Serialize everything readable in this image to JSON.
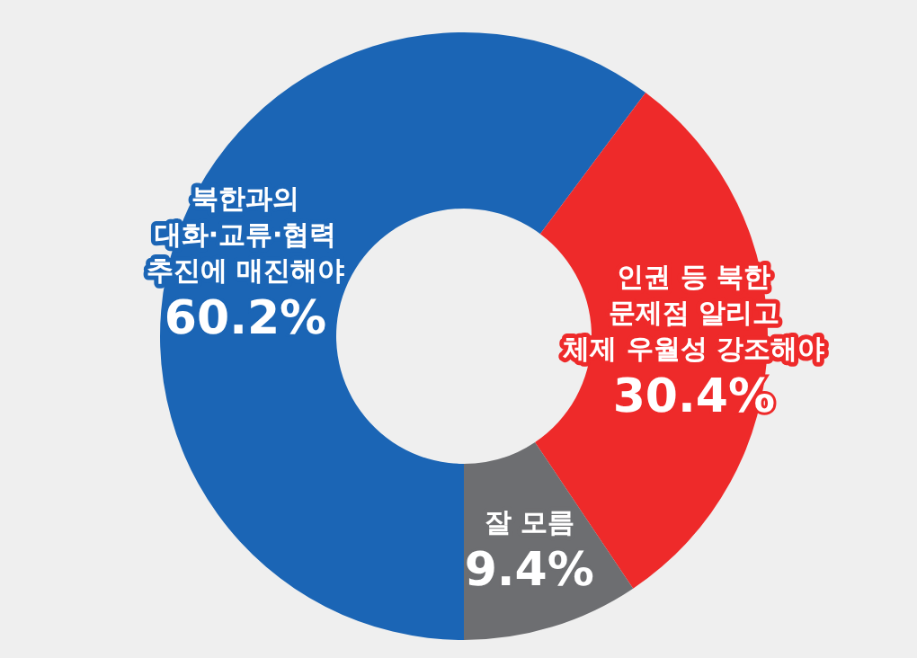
{
  "chart_data": {
    "type": "donut",
    "categories": [
      "북한과의\n대화·교류·협력\n추진에 매진해야",
      "인권 등 북한\n문제점 알리고\n체제 우월성 강조해야",
      "잘 모름"
    ],
    "values": [
      60.2,
      30.4,
      9.4
    ],
    "colors": [
      "#1b65b5",
      "#ee2a2a",
      "#6d6e71"
    ],
    "value_labels": [
      "60.2%",
      "30.4%",
      "9.4%"
    ]
  }
}
